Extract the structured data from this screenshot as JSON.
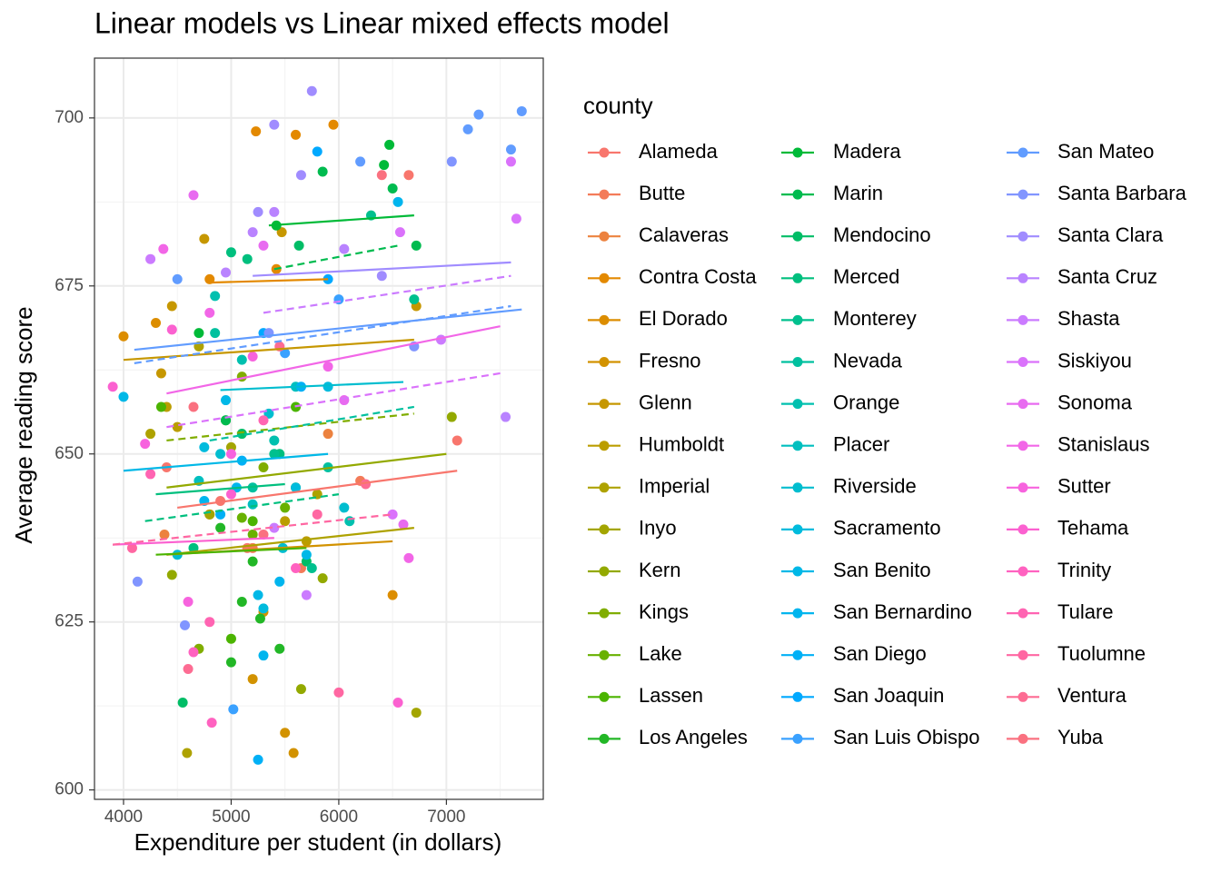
{
  "chart_data": {
    "type": "scatter",
    "title": "Linear models vs Linear mixed effects model",
    "x_label": "Expenditure per student (in dollars)",
    "y_label": "Average reading score",
    "legend_title": "county",
    "legend_position": "right",
    "grid": true,
    "xlim": [
      3730,
      7900
    ],
    "ylim": [
      598.6,
      708.9
    ],
    "xticks": [
      4000,
      5000,
      6000,
      7000
    ],
    "yticks": [
      600,
      625,
      650,
      675,
      700
    ],
    "xminor": [
      4500,
      5500,
      6500,
      7500
    ],
    "yminor": [
      612.5,
      637.5,
      662.5,
      687.5
    ],
    "series": [
      {
        "name": "Alameda",
        "color": "#F8766D",
        "x": [
          4400,
          5150,
          6650,
          7100,
          4900
        ],
        "values": [
          648,
          636,
          691.5,
          652,
          643
        ],
        "lm": {
          "x": [
            4500,
            7100
          ],
          "y": [
            642,
            647.5
          ]
        }
      },
      {
        "name": "Butte",
        "color": "#F37B59",
        "x": [
          5200,
          5650,
          6200
        ],
        "values": [
          636,
          633,
          646
        ]
      },
      {
        "name": "Calaveras",
        "color": "#EC823F",
        "x": [
          4380,
          4800,
          5900
        ],
        "values": [
          638,
          641,
          653
        ]
      },
      {
        "name": "Contra Costa",
        "color": "#E38900",
        "x": [
          5230,
          5600,
          5950,
          4800,
          5420
        ],
        "values": [
          698,
          697.5,
          699,
          676,
          677.5
        ],
        "lm": {
          "x": [
            4800,
            5900
          ],
          "y": [
            675.5,
            676
          ]
        }
      },
      {
        "name": "El Dorado",
        "color": "#DC8D00",
        "x": [
          4000,
          4300,
          6500
        ],
        "values": [
          667.5,
          669.5,
          629
        ]
      },
      {
        "name": "Fresno",
        "color": "#D29200",
        "x": [
          5200,
          5500,
          5300,
          5580
        ],
        "values": [
          616.5,
          608.5,
          626.5,
          605.5
        ],
        "lm": {
          "x": [
            4400,
            6500
          ],
          "y": [
            635,
            637
          ]
        }
      },
      {
        "name": "Glenn",
        "color": "#C69700",
        "x": [
          4450,
          4350,
          6720,
          4750,
          5470
        ],
        "values": [
          672,
          662,
          672,
          682,
          683
        ],
        "lm": {
          "x": [
            4000,
            6700
          ],
          "y": [
            664,
            667
          ]
        }
      },
      {
        "name": "Humboldt",
        "color": "#BB9D00",
        "x": [
          4400,
          4500,
          5700,
          5500
        ],
        "values": [
          657,
          654,
          637,
          640
        ]
      },
      {
        "name": "Imperial",
        "color": "#AEA200",
        "x": [
          4250,
          4590,
          5800,
          5600,
          4700
        ],
        "values": [
          653,
          605.5,
          644,
          645,
          666
        ],
        "lm": {
          "x": [
            4400,
            6700
          ],
          "y": [
            635,
            639
          ]
        }
      },
      {
        "name": "Inyo",
        "color": "#A3A500",
        "x": [
          4800,
          5000,
          6720
        ],
        "values": [
          641,
          651,
          611.5
        ]
      },
      {
        "name": "Kern",
        "color": "#93A900",
        "x": [
          7050,
          4450,
          5850,
          5650
        ],
        "values": [
          655.5,
          632,
          631.5,
          615
        ],
        "lm": {
          "x": [
            4400,
            7000
          ],
          "y": [
            645,
            650
          ]
        }
      },
      {
        "name": "Kings",
        "color": "#80AD00",
        "x": [
          4700,
          5100,
          5300
        ],
        "values": [
          621,
          661.5,
          648
        ],
        "lme": {
          "x": [
            4400,
            6700
          ],
          "y": [
            652,
            656
          ]
        }
      },
      {
        "name": "Lake",
        "color": "#68B100",
        "x": [
          5200,
          5500,
          5100
        ],
        "values": [
          638,
          642,
          640.5
        ]
      },
      {
        "name": "Lassen",
        "color": "#4BB400",
        "x": [
          4350,
          5200,
          5000,
          5600
        ],
        "values": [
          657,
          640,
          622.5,
          657
        ],
        "lm": {
          "x": [
            4300,
            5700
          ],
          "y": [
            635,
            636
          ]
        }
      },
      {
        "name": "Los Angeles",
        "color": "#22B726",
        "x": [
          5000,
          5100,
          4900,
          5270,
          4950,
          5450,
          5200
        ],
        "values": [
          619,
          628,
          639,
          625.5,
          655,
          621,
          634
        ]
      },
      {
        "name": "Madera",
        "color": "#00BA38",
        "x": [
          6470,
          6420,
          5420,
          4700
        ],
        "values": [
          696,
          693,
          684,
          668
        ],
        "lm": {
          "x": [
            5350,
            6700
          ],
          "y": [
            684,
            685.5
          ]
        }
      },
      {
        "name": "Marin",
        "color": "#00BB4F",
        "x": [
          5850,
          6500,
          6720,
          4950
        ],
        "values": [
          692,
          689.5,
          681,
          655
        ],
        "lme": {
          "x": [
            5400,
            6550
          ],
          "y": [
            677.5,
            681
          ]
        }
      },
      {
        "name": "Mendocino",
        "color": "#00BD66",
        "x": [
          5630,
          4550,
          5100,
          5700
        ],
        "values": [
          681,
          613,
          653,
          634
        ]
      },
      {
        "name": "Merced",
        "color": "#00BF7E",
        "x": [
          5000,
          5150,
          5450,
          4650
        ],
        "values": [
          680,
          679,
          650,
          636
        ],
        "lm": {
          "x": [
            4300,
            5500
          ],
          "y": [
            644,
            645.5
          ]
        },
        "lme": {
          "x": [
            4200,
            6000
          ],
          "y": [
            640,
            644
          ]
        }
      },
      {
        "name": "Monterey",
        "color": "#00C08E",
        "x": [
          6300,
          5750,
          5400,
          6700
        ],
        "values": [
          685.5,
          633,
          650,
          673
        ]
      },
      {
        "name": "Nevada",
        "color": "#00C09F",
        "x": [
          4850,
          5200,
          5900
        ],
        "values": [
          668,
          645,
          648
        ],
        "lme": {
          "x": [
            4800,
            6700
          ],
          "y": [
            652,
            657
          ]
        }
      },
      {
        "name": "Orange",
        "color": "#00C0AF",
        "x": [
          4850,
          5100,
          6100,
          5400
        ],
        "values": [
          673.5,
          664,
          640,
          652
        ]
      },
      {
        "name": "Placer",
        "color": "#00BFBF",
        "x": [
          5600,
          5200,
          4700
        ],
        "values": [
          660,
          642.5,
          646
        ]
      },
      {
        "name": "Riverside",
        "color": "#00BDCF",
        "x": [
          5480,
          6050,
          5350,
          4500,
          4900
        ],
        "values": [
          636,
          642,
          656,
          635,
          650
        ],
        "lm": {
          "x": [
            4900,
            6600
          ],
          "y": [
            659.5,
            660.7
          ]
        }
      },
      {
        "name": "Sacramento",
        "color": "#00BBDD",
        "x": [
          5300,
          4750,
          5900,
          5600
        ],
        "values": [
          627,
          651,
          660,
          645
        ]
      },
      {
        "name": "San Benito",
        "color": "#00B8E7",
        "x": [
          5250,
          4950,
          4000,
          5700
        ],
        "values": [
          629,
          658,
          658.5,
          635
        ],
        "lm": {
          "x": [
            4000,
            5900
          ],
          "y": [
            647.5,
            650
          ]
        }
      },
      {
        "name": "San Bernardino",
        "color": "#00B5EE",
        "x": [
          5300,
          5450,
          4750,
          6550,
          5050
        ],
        "values": [
          620,
          631,
          643,
          687.5,
          645
        ]
      },
      {
        "name": "San Diego",
        "color": "#00B0F6",
        "x": [
          5250,
          5100,
          5650,
          4900
        ],
        "values": [
          604.5,
          649,
          660,
          641
        ]
      },
      {
        "name": "San Joaquin",
        "color": "#00A9FF",
        "x": [
          5900,
          5300,
          5800
        ],
        "values": [
          676,
          668,
          695
        ]
      },
      {
        "name": "San Luis Obispo",
        "color": "#3AA1FF",
        "x": [
          5020,
          6000,
          5500
        ],
        "values": [
          612,
          673,
          665
        ]
      },
      {
        "name": "San Mateo",
        "color": "#619CFF",
        "x": [
          7700,
          7300,
          7200,
          7600,
          6200,
          4500
        ],
        "values": [
          701,
          700.5,
          698.3,
          695.3,
          693.5,
          676
        ],
        "lm": {
          "x": [
            4100,
            7700
          ],
          "y": [
            665.5,
            671.5
          ]
        },
        "lme": {
          "x": [
            4100,
            7600
          ],
          "y": [
            663.5,
            672
          ]
        }
      },
      {
        "name": "Santa Barbara",
        "color": "#8195FF",
        "x": [
          7050,
          4570,
          4130,
          5350,
          6700
        ],
        "values": [
          693.5,
          624.5,
          631,
          668,
          666
        ]
      },
      {
        "name": "Santa Clara",
        "color": "#A08CFF",
        "x": [
          5750,
          5400,
          5650,
          6400,
          5250
        ],
        "values": [
          704,
          699,
          691.5,
          676.5,
          686
        ],
        "lm": {
          "x": [
            5200,
            7600
          ],
          "y": [
            676.5,
            678.5
          ]
        }
      },
      {
        "name": "Santa Cruz",
        "color": "#B983FF",
        "x": [
          5200,
          5400,
          4950,
          6050,
          7550
        ],
        "values": [
          683,
          686,
          677,
          680.5,
          655.5
        ]
      },
      {
        "name": "Shasta",
        "color": "#CB7BFF",
        "x": [
          6950,
          5700,
          4250,
          5400
        ],
        "values": [
          667,
          629,
          679,
          639
        ],
        "lme": {
          "x": [
            5300,
            7600
          ],
          "y": [
            671,
            676.5
          ]
        }
      },
      {
        "name": "Siskiyou",
        "color": "#DA72FB",
        "x": [
          7650,
          7600,
          6570,
          6500
        ],
        "values": [
          685,
          693.5,
          683,
          641
        ],
        "lme": {
          "x": [
            4400,
            7500
          ],
          "y": [
            654,
            662
          ]
        }
      },
      {
        "name": "Sonoma",
        "color": "#E86BF0",
        "x": [
          4650,
          6050,
          6600,
          5300
        ],
        "values": [
          688.5,
          658,
          639.5,
          681
        ]
      },
      {
        "name": "Stanislaus",
        "color": "#F266E7",
        "x": [
          4370,
          4800,
          5900,
          6650
        ],
        "values": [
          680.5,
          671,
          663,
          634.5
        ],
        "lm": {
          "x": [
            4400,
            7500
          ],
          "y": [
            659,
            669
          ]
        }
      },
      {
        "name": "Sutter",
        "color": "#F763DE",
        "x": [
          4200,
          4600,
          5200,
          5000
        ],
        "values": [
          651.5,
          628,
          664.5,
          650
        ]
      },
      {
        "name": "Tehama",
        "color": "#FB61D0",
        "x": [
          3900,
          4450,
          6550,
          5000
        ],
        "values": [
          660,
          668.5,
          613,
          644
        ],
        "lm": {
          "x": [
            3900,
            5400
          ],
          "y": [
            636.5,
            637.5
          ]
        }
      },
      {
        "name": "Trinity",
        "color": "#FF62C0",
        "x": [
          4820,
          4650,
          5600
        ],
        "values": [
          610,
          620.5,
          633
        ]
      },
      {
        "name": "Tulare",
        "color": "#FF64B2",
        "x": [
          4250,
          5300,
          4800
        ],
        "values": [
          647,
          655,
          625
        ]
      },
      {
        "name": "Tuolumne",
        "color": "#FF67A2",
        "x": [
          4080,
          5800,
          6000
        ],
        "values": [
          636,
          641,
          614.5
        ],
        "lme": {
          "x": [
            3900,
            6500
          ],
          "y": [
            636.5,
            641
          ]
        }
      },
      {
        "name": "Ventura",
        "color": "#FD6C93",
        "x": [
          4600,
          5450,
          6250
        ],
        "values": [
          618,
          666,
          645.5
        ]
      },
      {
        "name": "Yuba",
        "color": "#FA7180",
        "x": [
          6400,
          5300,
          4650
        ],
        "values": [
          691.5,
          638,
          657
        ]
      }
    ]
  }
}
